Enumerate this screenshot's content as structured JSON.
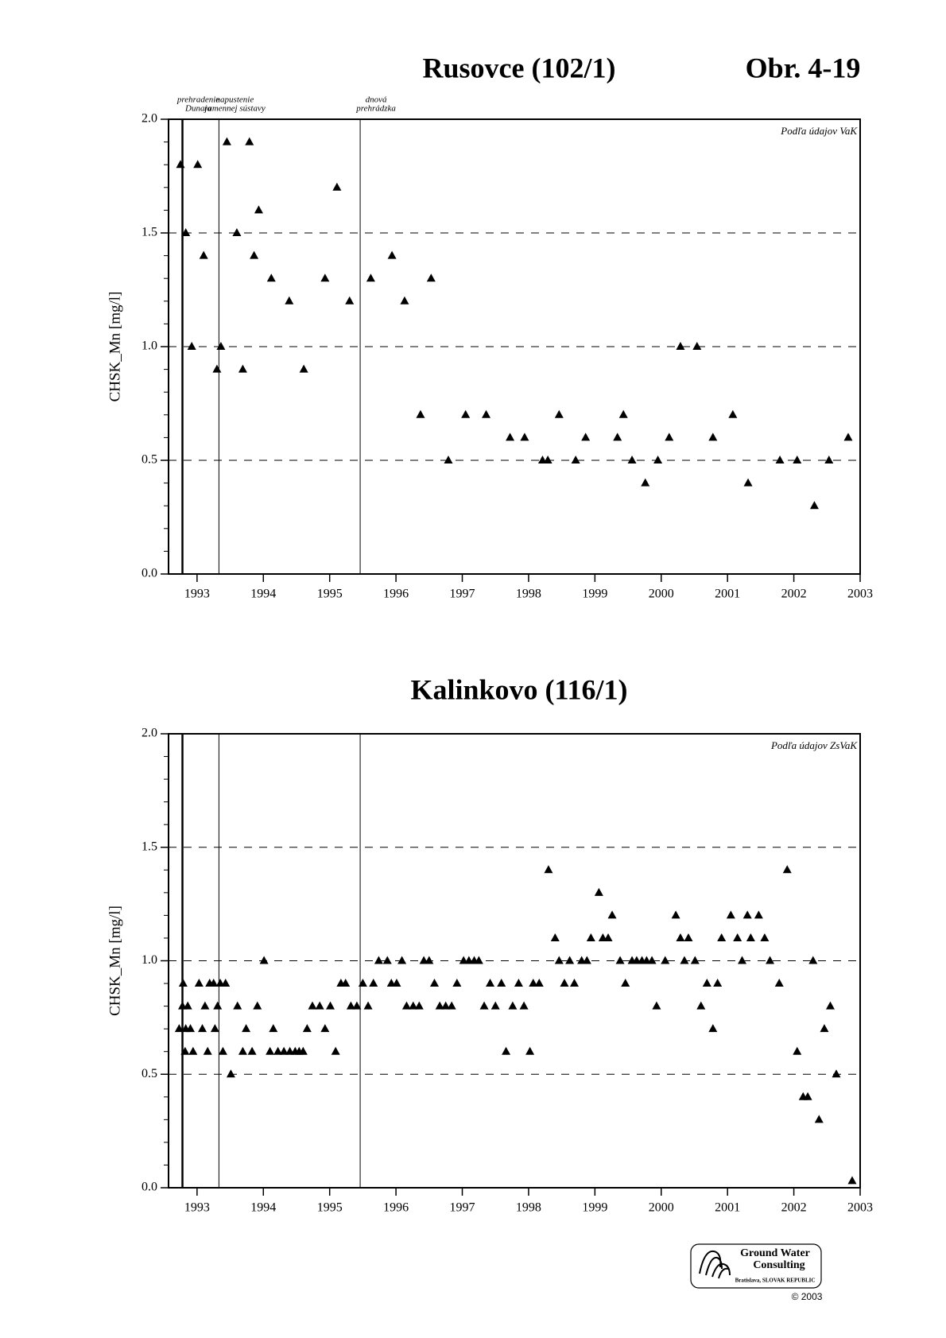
{
  "figure_label": "Obr. 4-19",
  "logo": {
    "line1": "Ground Water",
    "line2": "Consulting",
    "place": "Bratislava, SLOVAK REPUBLIC",
    "copyright": "© 2003"
  },
  "chart_data": [
    {
      "type": "scatter",
      "title": "Rusovce (102/1)",
      "y_label": "CHSK_Mn [mg/l]",
      "source_note": "Podľa údajov VaK",
      "xlim": [
        1992.57,
        2003
      ],
      "xticks": [
        1993,
        1994,
        1995,
        1996,
        1997,
        1998,
        1999,
        2000,
        2001,
        2002,
        2003
      ],
      "ylim": [
        0,
        2
      ],
      "yticks": [
        {
          "value": 0,
          "label": "0.0"
        },
        0.5,
        {
          "value": 1,
          "label": "1.0"
        },
        1.5,
        {
          "value": 2,
          "label": "2.0"
        }
      ],
      "y_minor_ticks": [
        0.1,
        0.2,
        0.3,
        0.4,
        0.6,
        0.7,
        0.8,
        0.9,
        1.1,
        1.2,
        1.3,
        1.4,
        1.6,
        1.7,
        1.8,
        1.9
      ],
      "grid": true,
      "color": "#000000",
      "marker": "triangle",
      "events": [
        {
          "x": 1992.78,
          "label": [
            "prehradenie",
            "Dunaja"
          ]
        },
        {
          "x": 1993.33,
          "label": [
            "napustenie",
            "ramennej sústavy"
          ]
        },
        {
          "x": 1995.46,
          "label": [
            "dnová",
            "prehrádzka"
          ]
        }
      ],
      "x": [
        1992.75,
        1992.83,
        1992.92,
        1993.01,
        1993.1,
        1993.3,
        1993.36,
        1993.45,
        1993.6,
        1993.69,
        1993.79,
        1993.86,
        1993.93,
        1994.12,
        1994.39,
        1994.61,
        1994.93,
        1995.11,
        1995.3,
        1995.62,
        1995.94,
        1996.13,
        1996.37,
        1996.53,
        1996.79,
        1997.05,
        1997.36,
        1997.72,
        1997.94,
        1998.21,
        1998.29,
        1998.46,
        1998.71,
        1998.86,
        1999.34,
        1999.43,
        1999.56,
        1999.76,
        1999.95,
        2000.12,
        2000.29,
        2000.54,
        2000.78,
        2001.08,
        2001.31,
        2001.79,
        2002.05,
        2002.31,
        2002.53,
        2002.82
      ],
      "values": [
        1.8,
        1.5,
        1.0,
        1.8,
        1.4,
        0.9,
        1.0,
        1.9,
        1.5,
        0.9,
        1.9,
        1.4,
        1.6,
        1.3,
        1.2,
        0.9,
        1.3,
        1.7,
        1.2,
        1.3,
        1.4,
        1.2,
        0.7,
        1.3,
        0.5,
        0.7,
        0.7,
        0.6,
        0.6,
        0.5,
        0.5,
        0.7,
        0.5,
        0.6,
        0.6,
        0.7,
        0.5,
        0.4,
        0.5,
        0.6,
        1.0,
        1.0,
        0.6,
        0.7,
        0.4,
        0.5,
        0.5,
        0.3,
        0.5,
        0.6
      ]
    },
    {
      "type": "scatter",
      "title": "Kalinkovo (116/1)",
      "y_label": "CHSK_Mn [mg/l]",
      "source_note": "Podľa údajov ZsVaK",
      "xlim": [
        1992.57,
        2003
      ],
      "xticks": [
        1993,
        1994,
        1995,
        1996,
        1997,
        1998,
        1999,
        2000,
        2001,
        2002,
        2003
      ],
      "ylim": [
        0,
        2
      ],
      "yticks": [
        {
          "value": 0,
          "label": "0.0"
        },
        0.5,
        {
          "value": 1,
          "label": "1.0"
        },
        1.5,
        {
          "value": 2,
          "label": "2.0"
        }
      ],
      "y_minor_ticks": [
        0.1,
        0.2,
        0.3,
        0.4,
        0.6,
        0.7,
        0.8,
        0.9,
        1.1,
        1.2,
        1.3,
        1.4,
        1.6,
        1.7,
        1.8,
        1.9
      ],
      "grid": true,
      "color": "#000000",
      "marker": "triangle",
      "events": [
        {
          "x": 1992.78
        },
        {
          "x": 1993.33
        },
        {
          "x": 1995.46
        }
      ],
      "x": [
        1992.73,
        1992.78,
        1992.79,
        1992.82,
        1992.83,
        1992.86,
        1992.9,
        1992.94,
        1993.03,
        1993.08,
        1993.12,
        1993.16,
        1993.19,
        1993.25,
        1993.27,
        1993.31,
        1993.35,
        1993.39,
        1993.43,
        1993.51,
        1993.61,
        1993.69,
        1993.74,
        1993.83,
        1993.91,
        1994.01,
        1994.1,
        1994.15,
        1994.22,
        1994.31,
        1994.4,
        1994.48,
        1994.54,
        1994.6,
        1994.66,
        1994.74,
        1994.85,
        1994.93,
        1995.01,
        1995.09,
        1995.17,
        1995.24,
        1995.32,
        1995.41,
        1995.5,
        1995.58,
        1995.66,
        1995.74,
        1995.87,
        1995.93,
        1996.01,
        1996.09,
        1996.16,
        1996.26,
        1996.35,
        1996.42,
        1996.5,
        1996.58,
        1996.66,
        1996.75,
        1996.84,
        1996.92,
        1997.02,
        1997.1,
        1997.18,
        1997.25,
        1997.33,
        1997.42,
        1997.5,
        1997.59,
        1997.66,
        1997.76,
        1997.85,
        1997.93,
        1998.02,
        1998.07,
        1998.16,
        1998.3,
        1998.4,
        1998.46,
        1998.54,
        1998.62,
        1998.69,
        1998.8,
        1998.88,
        1998.94,
        1999.06,
        1999.12,
        1999.2,
        1999.26,
        1999.38,
        1999.46,
        1999.56,
        1999.63,
        1999.71,
        1999.78,
        1999.86,
        1999.93,
        2000.06,
        2000.22,
        2000.29,
        2000.35,
        2000.41,
        2000.51,
        2000.6,
        2000.69,
        2000.78,
        2000.85,
        2000.91,
        2001.05,
        2001.15,
        2001.22,
        2001.3,
        2001.35,
        2001.47,
        2001.56,
        2001.64,
        2001.78,
        2001.9,
        2002.05,
        2002.14,
        2002.21,
        2002.29,
        2002.38,
        2002.46,
        2002.55,
        2002.64,
        2002.88
      ],
      "values": [
        0.7,
        0.8,
        0.9,
        0.6,
        0.7,
        0.8,
        0.7,
        0.6,
        0.9,
        0.7,
        0.8,
        0.6,
        0.9,
        0.9,
        0.7,
        0.8,
        0.9,
        0.6,
        0.9,
        0.5,
        0.8,
        0.6,
        0.7,
        0.6,
        0.8,
        1.0,
        0.6,
        0.7,
        0.6,
        0.6,
        0.6,
        0.6,
        0.6,
        0.6,
        0.7,
        0.8,
        0.8,
        0.7,
        0.8,
        0.6,
        0.9,
        0.9,
        0.8,
        0.8,
        0.9,
        0.8,
        0.9,
        1.0,
        1.0,
        0.9,
        0.9,
        1.0,
        0.8,
        0.8,
        0.8,
        1.0,
        1.0,
        0.9,
        0.8,
        0.8,
        0.8,
        0.9,
        1.0,
        1.0,
        1.0,
        1.0,
        0.8,
        0.9,
        0.8,
        0.9,
        0.6,
        0.8,
        0.9,
        0.8,
        0.6,
        0.9,
        0.9,
        1.4,
        1.1,
        1.0,
        0.9,
        1.0,
        0.9,
        1.0,
        1.0,
        1.1,
        1.3,
        1.1,
        1.1,
        1.2,
        1.0,
        0.9,
        1.0,
        1.0,
        1.0,
        1.0,
        1.0,
        0.8,
        1.0,
        1.2,
        1.1,
        1.0,
        1.1,
        1.0,
        0.8,
        0.9,
        0.7,
        0.9,
        1.1,
        1.2,
        1.1,
        1.0,
        1.2,
        1.1,
        1.2,
        1.1,
        1.0,
        0.9,
        1.4,
        0.6,
        0.4,
        0.4,
        1.0,
        0.3,
        0.7,
        0.8,
        0.5,
        0.03
      ]
    }
  ]
}
